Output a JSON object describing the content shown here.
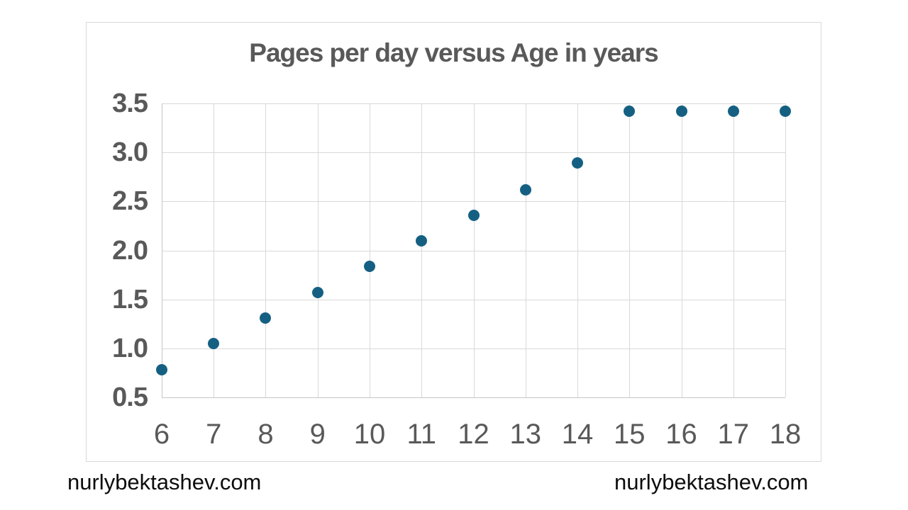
{
  "watermarks": {
    "left": "nurlybektashev.com",
    "right": "nurlybektashev.com"
  },
  "chart_data": {
    "type": "scatter",
    "title": "Pages per day versus Age in years",
    "xlabel": "",
    "ylabel": "",
    "x": [
      6,
      7,
      8,
      9,
      10,
      11,
      12,
      13,
      14,
      15,
      16,
      17,
      18
    ],
    "y": [
      0.78,
      1.05,
      1.31,
      1.57,
      1.84,
      2.1,
      2.36,
      2.62,
      2.89,
      3.42,
      3.42,
      3.42,
      3.42
    ],
    "xlim": [
      6,
      18
    ],
    "ylim": [
      0.5,
      3.5
    ],
    "x_ticks": [
      6,
      7,
      8,
      9,
      10,
      11,
      12,
      13,
      14,
      15,
      16,
      17,
      18
    ],
    "x_tick_labels": [
      "6",
      "7",
      "8",
      "9",
      "10",
      "11",
      "12",
      "13",
      "14",
      "15",
      "16",
      "17",
      "18"
    ],
    "y_ticks": [
      0.5,
      1.0,
      1.5,
      2.0,
      2.5,
      3.0,
      3.5
    ],
    "y_tick_labels": [
      "0.5",
      "1.0",
      "1.5",
      "2.0",
      "2.5",
      "3.0",
      "3.5"
    ],
    "grid": true,
    "legend": false,
    "marker_color": "#156082",
    "gridline_color": "#d9d9d9",
    "axis_line_color": "#c6c6c6",
    "label_color": "#595959",
    "title_color": "#595959",
    "chart_border_color": "#d9d9d9"
  }
}
